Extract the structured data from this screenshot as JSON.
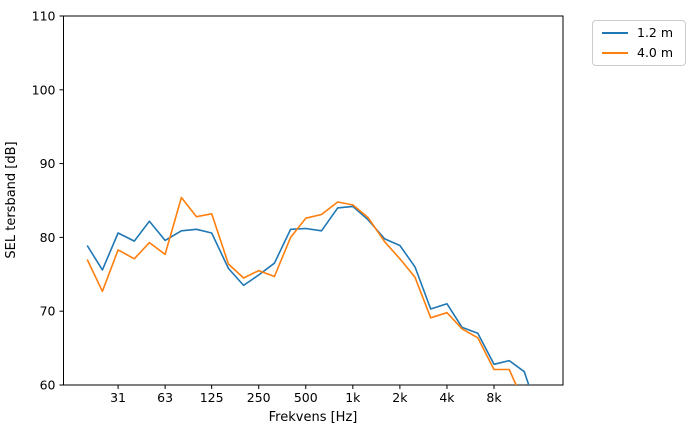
{
  "chart_data": {
    "type": "line",
    "title": "",
    "xlabel": "Frekvens [Hz]",
    "ylabel": "SEL tersband [dB]",
    "x_scale": "log",
    "grid": false,
    "xlim": [
      14.1,
      22100
    ],
    "ylim": [
      60,
      110
    ],
    "yticks": [
      60,
      70,
      80,
      90,
      100,
      110
    ],
    "xticks": {
      "values": [
        31.5,
        63,
        125,
        250,
        500,
        1000,
        2000,
        4000,
        8000
      ],
      "labels": [
        "31",
        "63",
        "125",
        "250",
        "500",
        "1k",
        "2k",
        "4k",
        "8k"
      ]
    },
    "x": [
      20,
      25,
      31.5,
      40,
      50,
      63,
      80,
      100,
      125,
      160,
      200,
      250,
      315,
      400,
      500,
      630,
      800,
      1000,
      1250,
      1600,
      2000,
      2500,
      3150,
      4000,
      5000,
      6300,
      8000,
      10000,
      12500,
      16000
    ],
    "series": [
      {
        "name": "1.2 m",
        "color": "#1f77b4",
        "values": [
          78.9,
          75.6,
          80.6,
          79.5,
          82.2,
          79.6,
          80.9,
          81.1,
          80.6,
          75.8,
          73.5,
          74.9,
          76.5,
          81.1,
          81.2,
          80.9,
          84.0,
          84.2,
          82.4,
          79.8,
          78.9,
          76.0,
          70.3,
          71.0,
          67.8,
          67.0,
          62.8,
          63.3,
          61.8,
          55.0
        ]
      },
      {
        "name": "4.0 m",
        "color": "#ff7f0e",
        "values": [
          77.0,
          72.7,
          78.3,
          77.1,
          79.3,
          77.7,
          85.4,
          82.8,
          83.2,
          76.4,
          74.5,
          75.5,
          74.7,
          80.0,
          82.6,
          83.1,
          84.8,
          84.4,
          82.7,
          79.4,
          77.1,
          74.6,
          69.1,
          69.8,
          67.6,
          66.4,
          62.1,
          62.1,
          57.5,
          54.0
        ]
      }
    ],
    "legend": {
      "position": "upper-right-outside"
    }
  }
}
